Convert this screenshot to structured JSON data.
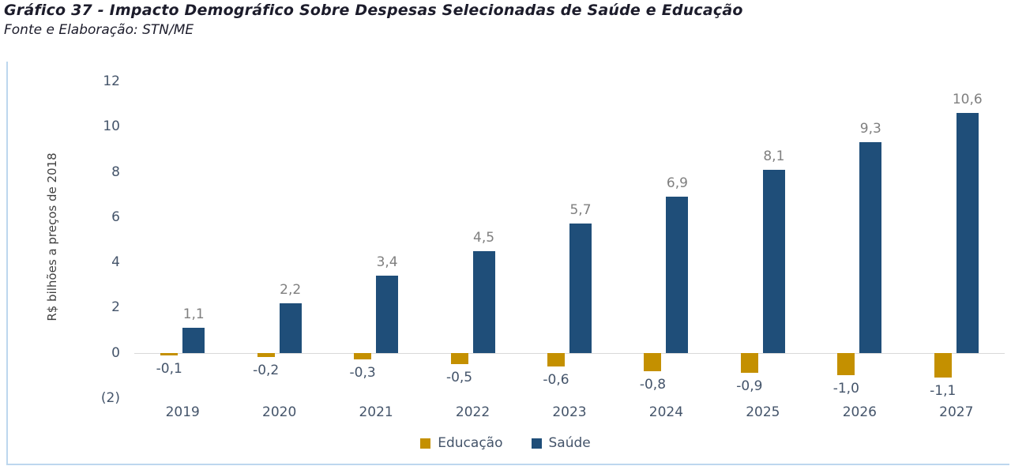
{
  "header": {
    "title": "Gráfico 37 - Impacto Demográfico Sobre Despesas Selecionadas de Saúde e Educação",
    "source": "Fonte e Elaboração: STN/ME"
  },
  "chart_data": {
    "type": "bar",
    "title": "Gráfico 37 - Impacto Demográfico Sobre Despesas Selecionadas de Saúde e Educação",
    "categories": [
      "2019",
      "2020",
      "2021",
      "2022",
      "2023",
      "2024",
      "2025",
      "2026",
      "2027"
    ],
    "series": [
      {
        "name": "Educação",
        "color": "#C49000",
        "values": [
          -0.1,
          -0.2,
          -0.3,
          -0.5,
          -0.6,
          -0.8,
          -0.9,
          -1.0,
          -1.1
        ],
        "labels": [
          "-0,1",
          "-0,2",
          "-0,3",
          "-0,5",
          "-0,6",
          "-0,8",
          "-0,9",
          "-1,0",
          "-1,1"
        ]
      },
      {
        "name": "Saúde",
        "color": "#1F4E79",
        "values": [
          1.1,
          2.2,
          3.4,
          4.5,
          5.7,
          6.9,
          8.1,
          9.3,
          10.6
        ],
        "labels": [
          "1,1",
          "2,2",
          "3,4",
          "4,5",
          "5,7",
          "6,9",
          "8,1",
          "9,3",
          "10,6"
        ]
      }
    ],
    "xlabel": "",
    "ylabel": "R$ bilhões a preços de 2018",
    "ylim": [
      -2,
      12
    ],
    "y_ticks": [
      12,
      10,
      8,
      6,
      4,
      2,
      0,
      -2
    ],
    "y_tick_labels": [
      "12",
      "10",
      "8",
      "6",
      "4",
      "2",
      "0",
      "(2)"
    ],
    "grid": false,
    "legend_position": "bottom",
    "frame_color": "#BDD7EE",
    "positive_label_color": "#7F7F7F",
    "negative_label_color": "#44546A"
  }
}
